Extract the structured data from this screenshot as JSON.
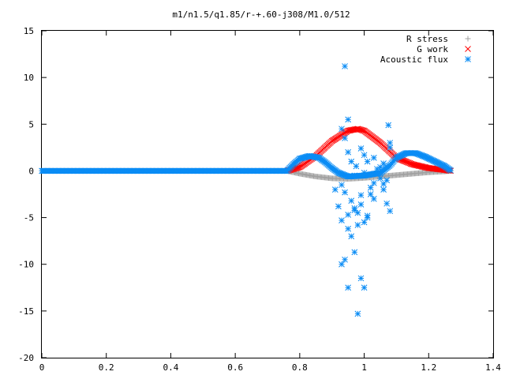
{
  "chart_data": {
    "type": "scatter",
    "title": "m1/n1.5/q1.85/r-+.60-j308/M1.0/512",
    "xlabel": "",
    "ylabel": "",
    "xlim": [
      0,
      1.4
    ],
    "ylim": [
      -20,
      15
    ],
    "x_ticks": [
      "0",
      "0.2",
      "0.4",
      "0.6",
      "0.8",
      "1",
      "1.2",
      "1.4"
    ],
    "y_ticks": [
      "15",
      "10",
      "5",
      "0",
      "-5",
      "-10",
      "-15",
      "-20"
    ],
    "grid": false,
    "legend_position": "top-right",
    "series": [
      {
        "name": "R stress",
        "marker": "plus",
        "color": "#a0a0a0",
        "curve": {
          "x": [
            0.0,
            0.76,
            0.8,
            0.85,
            0.9,
            0.95,
            1.0,
            1.05,
            1.1,
            1.15,
            1.2,
            1.25,
            1.27
          ],
          "y": [
            0.0,
            0.0,
            -0.3,
            -0.6,
            -0.8,
            -0.85,
            -0.75,
            -0.6,
            -0.45,
            -0.3,
            -0.15,
            -0.05,
            0.0
          ]
        }
      },
      {
        "name": "G work",
        "marker": "cross",
        "color": "#ff0000",
        "curve": {
          "x": [
            0.76,
            0.8,
            0.85,
            0.9,
            0.95,
            0.98,
            1.0,
            1.05,
            1.1,
            1.15,
            1.2,
            1.25,
            1.27
          ],
          "y": [
            0.0,
            0.4,
            1.6,
            3.2,
            4.3,
            4.5,
            4.3,
            3.0,
            1.4,
            0.7,
            0.3,
            0.1,
            0.0
          ]
        }
      },
      {
        "name": "Acoustic flux",
        "marker": "star",
        "color": "#0a8cf5",
        "curve": {
          "x": [
            0.0,
            0.76,
            0.78,
            0.8,
            0.83,
            0.86,
            0.88,
            0.9,
            0.92,
            0.95,
            1.0,
            1.05,
            1.08,
            1.1,
            1.13,
            1.16,
            1.19,
            1.22,
            1.25,
            1.27
          ],
          "y": [
            0.0,
            0.0,
            0.7,
            1.3,
            1.6,
            1.4,
            0.9,
            0.3,
            -0.2,
            -0.6,
            -0.5,
            -0.2,
            0.6,
            1.4,
            1.9,
            1.9,
            1.5,
            1.0,
            0.5,
            0.0
          ]
        },
        "scatter": {
          "x": [
            0.94,
            0.95,
            0.93,
            0.94,
            0.95,
            0.96,
            0.97,
            0.93,
            0.94,
            0.96,
            0.97,
            0.98,
            0.99,
            0.93,
            0.95,
            0.97,
            0.98,
            0.99,
            1.0,
            1.01,
            1.02,
            1.03,
            1.04,
            1.05,
            1.06,
            1.07,
            1.08,
            1.0,
            1.02,
            1.04,
            1.06,
            1.075,
            1.08,
            1.0,
            1.01,
            0.99,
            1.03,
            1.05,
            1.07,
            0.96,
            0.98,
            0.92,
            0.91,
            0.95,
            0.97,
            0.99,
            1.01,
            1.03,
            1.06,
            1.08,
            0.94,
            0.93,
            0.975,
            1.0,
            0.95
          ],
          "y": [
            11.2,
            5.5,
            4.5,
            3.5,
            2.0,
            1.0,
            -0.5,
            -1.5,
            -2.3,
            -3.2,
            -4.0,
            -4.5,
            -3.6,
            -10.0,
            -12.5,
            -8.7,
            -15.3,
            -11.5,
            -12.5,
            -4.8,
            -2.5,
            -1.3,
            0.2,
            -0.8,
            -2.0,
            -3.5,
            -4.3,
            -5.5,
            -1.8,
            -0.3,
            0.8,
            4.9,
            3.0,
            1.7,
            1.0,
            2.4,
            1.4,
            0.4,
            -1.0,
            -7.0,
            -5.8,
            -3.8,
            -2.0,
            -6.2,
            -4.2,
            -2.6,
            -5.0,
            -3.0,
            -1.4,
            2.5,
            -9.5,
            -5.3,
            0.5,
            -0.2,
            -4.7
          ]
        }
      }
    ]
  }
}
